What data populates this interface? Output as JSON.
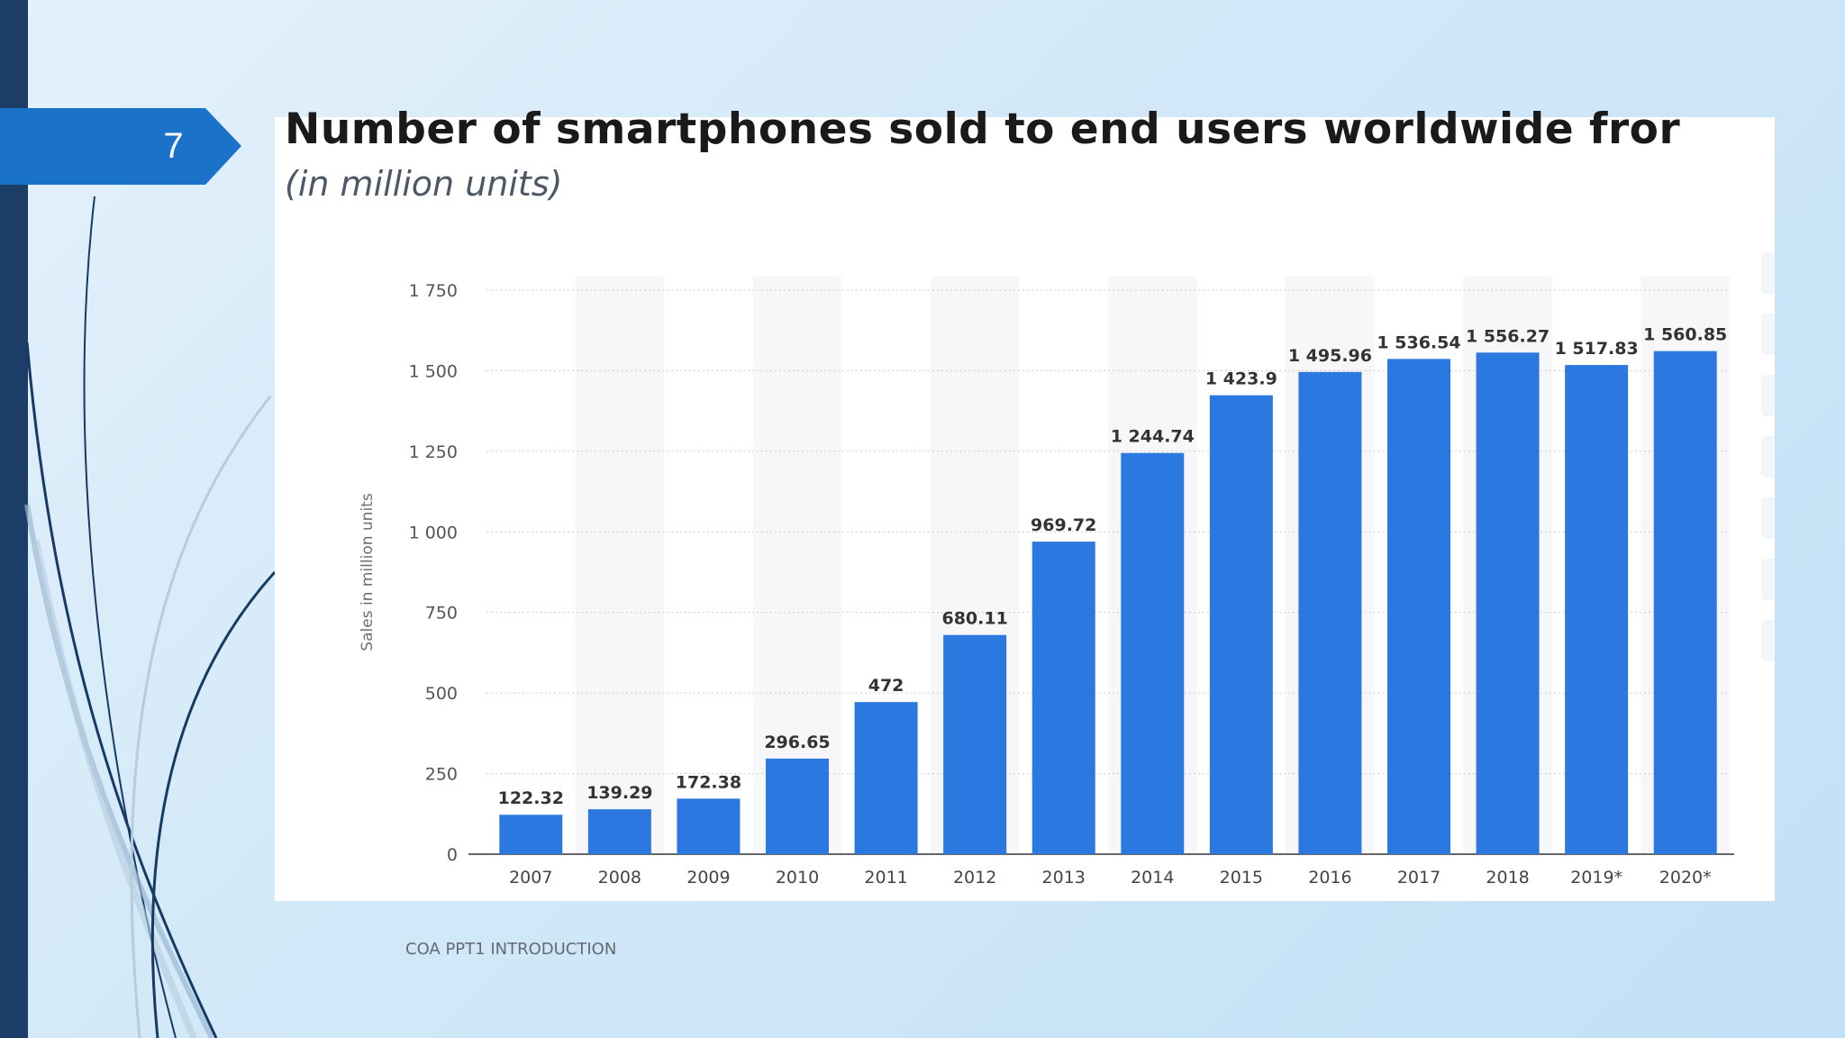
{
  "slide": {
    "number": "7",
    "footer": "COA PPT1 INTRODUCTION"
  },
  "colors": {
    "bar": "#2b78e0",
    "left_bar": "#1b3d67",
    "badge": "#1a73c9"
  },
  "chart_data": {
    "type": "bar",
    "title": "Number of smartphones sold to end users worldwide fror",
    "subtitle": "(in million units)",
    "xlabel": "",
    "ylabel": "Sales in million units",
    "categories": [
      "2007",
      "2008",
      "2009",
      "2010",
      "2011",
      "2012",
      "2013",
      "2014",
      "2015",
      "2016",
      "2017",
      "2018",
      "2019*",
      "2020*"
    ],
    "values": [
      122.32,
      139.29,
      172.38,
      296.65,
      472,
      680.11,
      969.72,
      1244.74,
      1423.9,
      1495.96,
      1536.54,
      1556.27,
      1517.83,
      1560.85
    ],
    "value_labels": [
      "122.32",
      "139.29",
      "172.38",
      "296.65",
      "472",
      "680.11",
      "969.72",
      "1 244.74",
      "1 423.9",
      "1 495.96",
      "1 536.54",
      "1 556.27",
      "1 517.83",
      "1 560.85"
    ],
    "yticks": [
      0,
      250,
      500,
      750,
      1000,
      1250,
      1500,
      1750
    ],
    "ytick_labels": [
      "0",
      "250",
      "500",
      "750",
      "1 000",
      "1 250",
      "1 500",
      "1 750"
    ],
    "ylim": [
      0,
      1750
    ],
    "grid": true
  }
}
